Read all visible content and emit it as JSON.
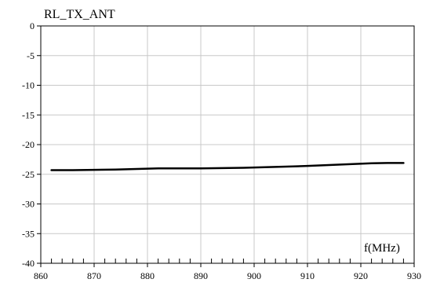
{
  "chart_data": {
    "type": "line",
    "title": "RL_TX_ANT",
    "xlabel": "f(MHz)",
    "ylabel": "",
    "xlim": [
      860,
      930
    ],
    "ylim": [
      -40,
      0
    ],
    "xticks": [
      860,
      870,
      880,
      890,
      900,
      910,
      920,
      930
    ],
    "yticks": [
      0,
      -5,
      -10,
      -15,
      -20,
      -25,
      -30,
      -35,
      -40
    ],
    "xtick_labels": [
      "860",
      "870",
      "880",
      "890",
      "900",
      "910",
      "920",
      "930"
    ],
    "ytick_labels": [
      "0",
      "-5",
      "-10",
      "-15",
      "-20",
      "-25",
      "-30",
      "-35",
      "-40"
    ],
    "x_minor_step": 2,
    "grid": true,
    "series": [
      {
        "color": "#000000",
        "x": [
          862,
          866,
          870,
          874,
          878,
          882,
          886,
          890,
          894,
          898,
          902,
          906,
          910,
          914,
          918,
          922,
          925,
          928
        ],
        "y": [
          -24.3,
          -24.3,
          -24.25,
          -24.2,
          -24.1,
          -24.0,
          -24.0,
          -24.0,
          -23.95,
          -23.9,
          -23.8,
          -23.7,
          -23.6,
          -23.45,
          -23.3,
          -23.15,
          -23.1,
          -23.1
        ]
      }
    ]
  }
}
